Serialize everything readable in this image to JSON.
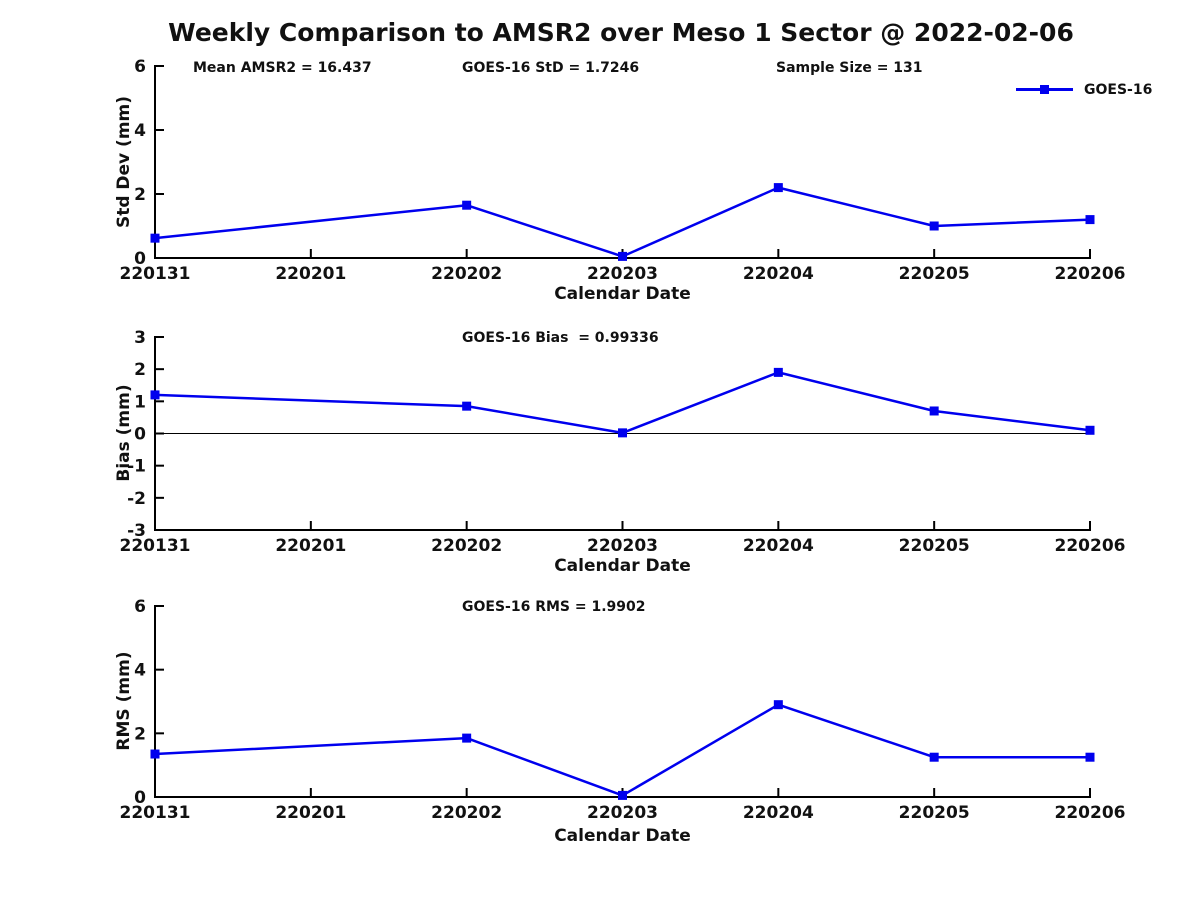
{
  "title": "Weekly Comparison to AMSR2 over Meso 1 Sector @ 2022-02-06",
  "annotations": {
    "mean_amsr2": "Mean AMSR2 = 16.437",
    "goes16_std": "GOES-16 StD = 1.7246",
    "sample_size": "Sample Size = 131"
  },
  "legend": {
    "label": "GOES-16",
    "marker": "filled-square",
    "position": "top-right"
  },
  "colors": {
    "series": "#0000ee",
    "axis": "#000000",
    "text": "#111111",
    "background": "#ffffff"
  },
  "chart_data": [
    {
      "type": "line",
      "title": "",
      "xlabel": "Calendar Date",
      "ylabel": "Std Dev (mm)",
      "categories": [
        "220131",
        "220201",
        "220202",
        "220203",
        "220204",
        "220205",
        "220206"
      ],
      "ylim": [
        0,
        6
      ],
      "yticks": [
        0,
        2,
        4,
        6
      ],
      "zero_line": false,
      "grid": false,
      "series": [
        {
          "name": "GOES-16",
          "x": [
            "220131",
            "220202",
            "220203",
            "220204",
            "220205",
            "220206"
          ],
          "values": [
            0.62,
            1.65,
            0.05,
            2.2,
            1.0,
            1.2
          ]
        }
      ]
    },
    {
      "type": "line",
      "title": "GOES-16 Bias  = 0.99336",
      "xlabel": "Calendar Date",
      "ylabel": "Bias (mm)",
      "categories": [
        "220131",
        "220201",
        "220202",
        "220203",
        "220204",
        "220205",
        "220206"
      ],
      "ylim": [
        -3,
        3
      ],
      "yticks": [
        -3,
        -2,
        -1,
        0,
        1,
        2,
        3
      ],
      "zero_line": true,
      "grid": false,
      "series": [
        {
          "name": "GOES-16",
          "x": [
            "220131",
            "220202",
            "220203",
            "220204",
            "220205",
            "220206"
          ],
          "values": [
            1.2,
            0.85,
            0.02,
            1.9,
            0.7,
            0.1
          ]
        }
      ]
    },
    {
      "type": "line",
      "title": "GOES-16 RMS = 1.9902",
      "xlabel": "Calendar Date",
      "ylabel": "RMS (mm)",
      "categories": [
        "220131",
        "220201",
        "220202",
        "220203",
        "220204",
        "220205",
        "220206"
      ],
      "ylim": [
        0,
        6
      ],
      "yticks": [
        0,
        2,
        4,
        6
      ],
      "zero_line": false,
      "grid": false,
      "series": [
        {
          "name": "GOES-16",
          "x": [
            "220131",
            "220202",
            "220203",
            "220204",
            "220205",
            "220206"
          ],
          "values": [
            1.35,
            1.85,
            0.05,
            2.9,
            1.25,
            1.25
          ]
        }
      ]
    }
  ]
}
